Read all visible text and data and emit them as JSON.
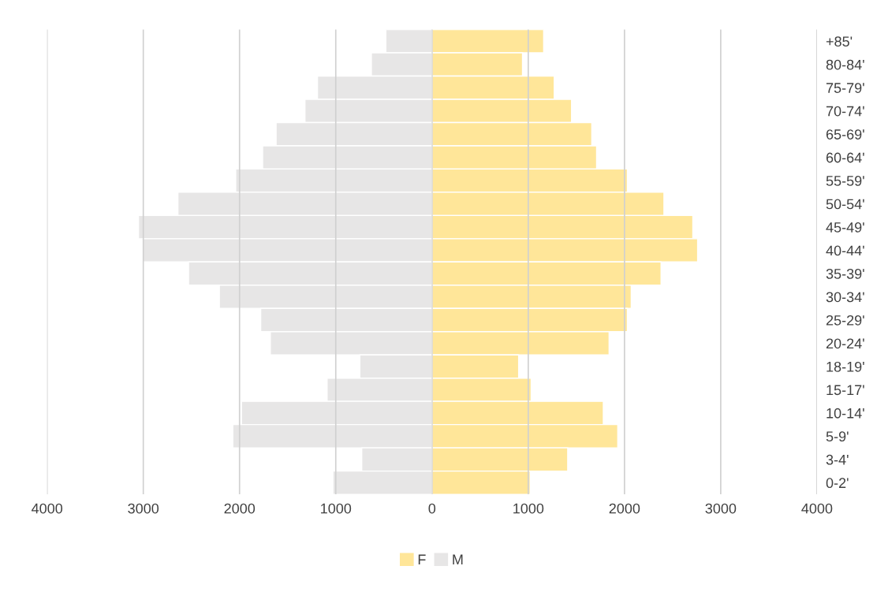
{
  "chart_data": [
    {
      "type": "bar",
      "orientation": "horizontal",
      "series": [
        {
          "name": "M",
          "color": "#e7e6e6",
          "values": [
            480,
            630,
            1190,
            1320,
            1620,
            1760,
            2040,
            2640,
            3050,
            3010,
            2530,
            2210,
            1780,
            1680,
            750,
            1090,
            1980,
            2070,
            730,
            1030
          ]
        }
      ],
      "xlim": [
        4000,
        0
      ],
      "xticks": [
        4000,
        3000,
        2000,
        1000,
        {
          "value": 0,
          "label": null
        }
      ],
      "tick_labels": "x",
      "grid": "x",
      "legend": "bottom"
    },
    {
      "type": "bar",
      "orientation": "horizontal",
      "categories": [
        "+85'",
        "80-84'",
        "75-79'",
        "70-74'",
        "65-69'",
        "60-64'",
        "55-59'",
        "50-54'",
        "45-49'",
        "40-44'",
        "35-39'",
        "30-34'",
        "25-29'",
        "20-24'",
        "18-19'",
        "15-17'",
        "10-14'",
        "5-9'",
        "3-4'",
        "0-2'"
      ],
      "series": [
        {
          "name": "F",
          "color": "#ffe699",
          "values": [
            1160,
            940,
            1270,
            1450,
            1660,
            1710,
            2030,
            2410,
            2710,
            2760,
            2380,
            2070,
            2030,
            1840,
            900,
            1030,
            1780,
            1930,
            1410,
            1020
          ]
        }
      ],
      "xlim": [
        0,
        4000
      ],
      "xticks": [
        0,
        1000,
        2000,
        3000,
        4000
      ],
      "grid": "x",
      "legend": "bottom"
    }
  ]
}
